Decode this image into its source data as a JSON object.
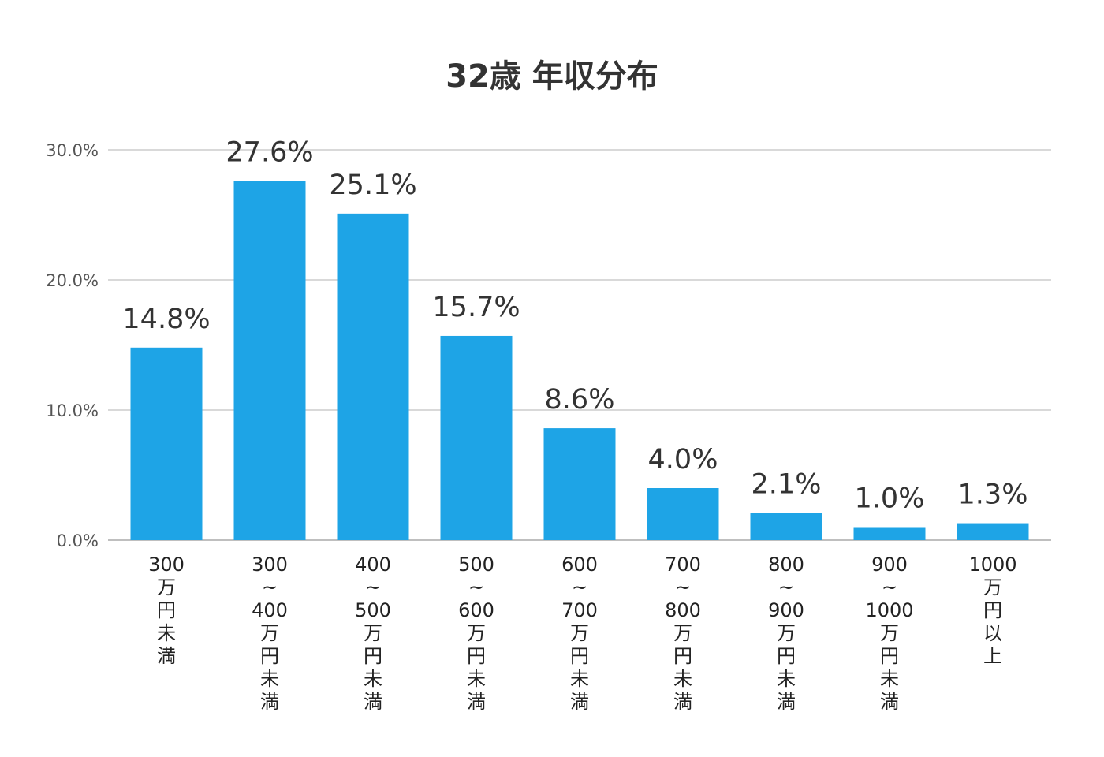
{
  "chart_data": {
    "type": "bar",
    "title": "32歳 年収分布",
    "xlabel": "",
    "ylabel": "",
    "ylim": [
      0,
      30
    ],
    "yticks": [
      "0.0%",
      "10.0%",
      "20.0%",
      "30.0%"
    ],
    "grid": true,
    "legend": "none",
    "bar_color": "#1ea4e6",
    "categories": [
      [
        "300",
        "万",
        "円",
        "未",
        "満"
      ],
      [
        "300",
        "~",
        "400",
        "万",
        "円",
        "未",
        "満"
      ],
      [
        "400",
        "~",
        "500",
        "万",
        "円",
        "未",
        "満"
      ],
      [
        "500",
        "~",
        "600",
        "万",
        "円",
        "未",
        "満"
      ],
      [
        "600",
        "~",
        "700",
        "万",
        "円",
        "未",
        "満"
      ],
      [
        "700",
        "~",
        "800",
        "万",
        "円",
        "未",
        "満"
      ],
      [
        "800",
        "~",
        "900",
        "万",
        "円",
        "未",
        "満"
      ],
      [
        "900",
        "~",
        "1000",
        "万",
        "円",
        "未",
        "満"
      ],
      [
        "1000",
        "万",
        "円",
        "以",
        "上"
      ]
    ],
    "values": [
      14.8,
      27.6,
      25.1,
      15.7,
      8.6,
      4.0,
      2.1,
      1.0,
      1.3
    ],
    "value_labels": [
      "14.8%",
      "27.6%",
      "25.1%",
      "15.7%",
      "8.6%",
      "4.0%",
      "2.1%",
      "1.0%",
      "1.3%"
    ]
  }
}
